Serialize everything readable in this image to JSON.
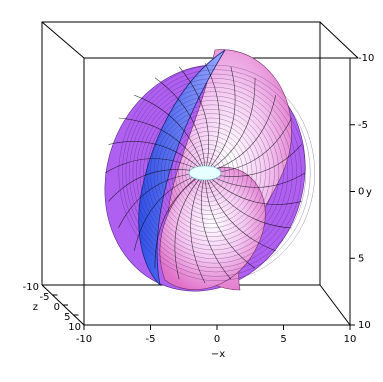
{
  "chart_data": {
    "type": "surface3d",
    "x_label": "−x",
    "y_label": "y",
    "z_label": "z",
    "xlim": [
      -10,
      10
    ],
    "xticks": [
      -10,
      -5,
      0,
      5,
      10
    ],
    "ylim": [
      -10,
      10
    ],
    "yticks": [
      -10,
      -5,
      0,
      5,
      10
    ],
    "zlim": [
      -10,
      10
    ],
    "zticks": [
      -10,
      -5,
      0,
      5,
      10
    ]
  }
}
